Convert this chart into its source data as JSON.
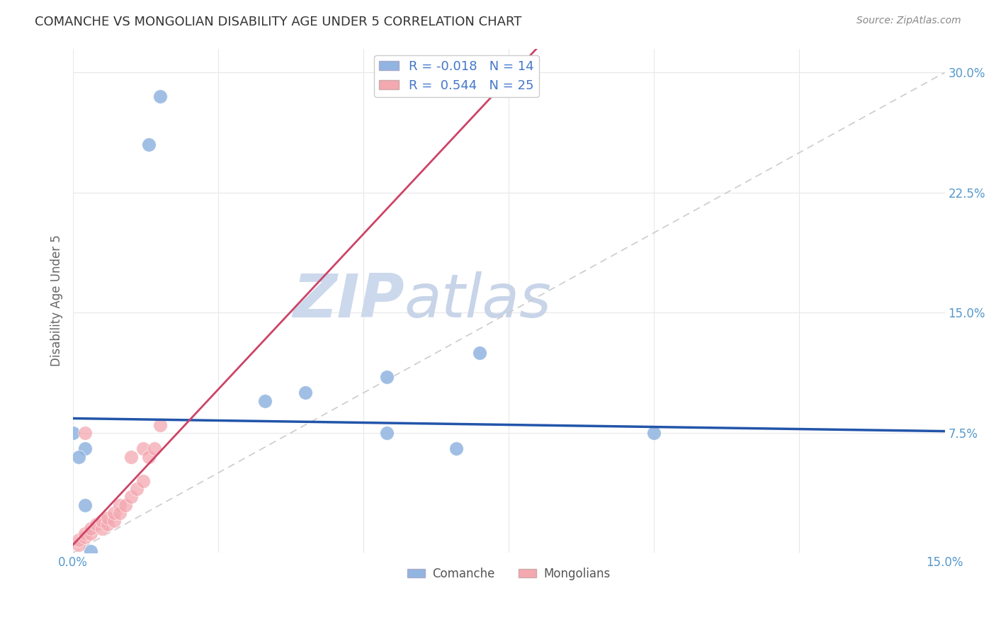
{
  "title": "COMANCHE VS MONGOLIAN DISABILITY AGE UNDER 5 CORRELATION CHART",
  "source": "Source: ZipAtlas.com",
  "ylabel": "Disability Age Under 5",
  "xlim": [
    0.0,
    0.15
  ],
  "ylim": [
    0.0,
    0.315
  ],
  "xticks": [
    0.0,
    0.025,
    0.05,
    0.075,
    0.1,
    0.125,
    0.15
  ],
  "yticks": [
    0.0,
    0.075,
    0.15,
    0.225,
    0.3
  ],
  "ytick_labels": [
    "",
    "7.5%",
    "15.0%",
    "22.5%",
    "30.0%"
  ],
  "xtick_labels": [
    "0.0%",
    "",
    "",
    "",
    "",
    "",
    "15.0%"
  ],
  "comanche_R": -0.018,
  "comanche_N": 14,
  "mongolian_R": 0.544,
  "mongolian_N": 25,
  "comanche_color": "#91b4e0",
  "mongolian_color": "#f4a8b0",
  "trend_comanche_color": "#2255aa",
  "trend_mongolian_color": "#cc4466",
  "diagonal_color": "#cccccc",
  "comanche_x": [
    0.015,
    0.013,
    0.002,
    0.001,
    0.002,
    0.054,
    0.066,
    0.04,
    0.033,
    0.07,
    0.1,
    0.054,
    0.0,
    0.003
  ],
  "comanche_y": [
    0.285,
    0.255,
    0.065,
    0.06,
    0.03,
    0.075,
    0.065,
    0.1,
    0.095,
    0.125,
    0.075,
    0.11,
    0.075,
    0.001
  ],
  "mongolian_x": [
    0.001,
    0.001,
    0.002,
    0.002,
    0.003,
    0.003,
    0.004,
    0.005,
    0.005,
    0.006,
    0.006,
    0.007,
    0.007,
    0.008,
    0.008,
    0.009,
    0.01,
    0.01,
    0.011,
    0.012,
    0.012,
    0.013,
    0.014,
    0.015,
    0.002
  ],
  "mongolian_y": [
    0.005,
    0.008,
    0.01,
    0.012,
    0.012,
    0.015,
    0.018,
    0.015,
    0.02,
    0.018,
    0.022,
    0.02,
    0.025,
    0.03,
    0.025,
    0.03,
    0.035,
    0.06,
    0.04,
    0.045,
    0.065,
    0.06,
    0.065,
    0.08,
    0.075
  ],
  "background_color": "#ffffff",
  "grid_color": "#e8e8e8",
  "title_color": "#333333",
  "axis_color": "#5599cc",
  "watermark_color": "#d0dff0",
  "legend_R_color": "#4477cc"
}
